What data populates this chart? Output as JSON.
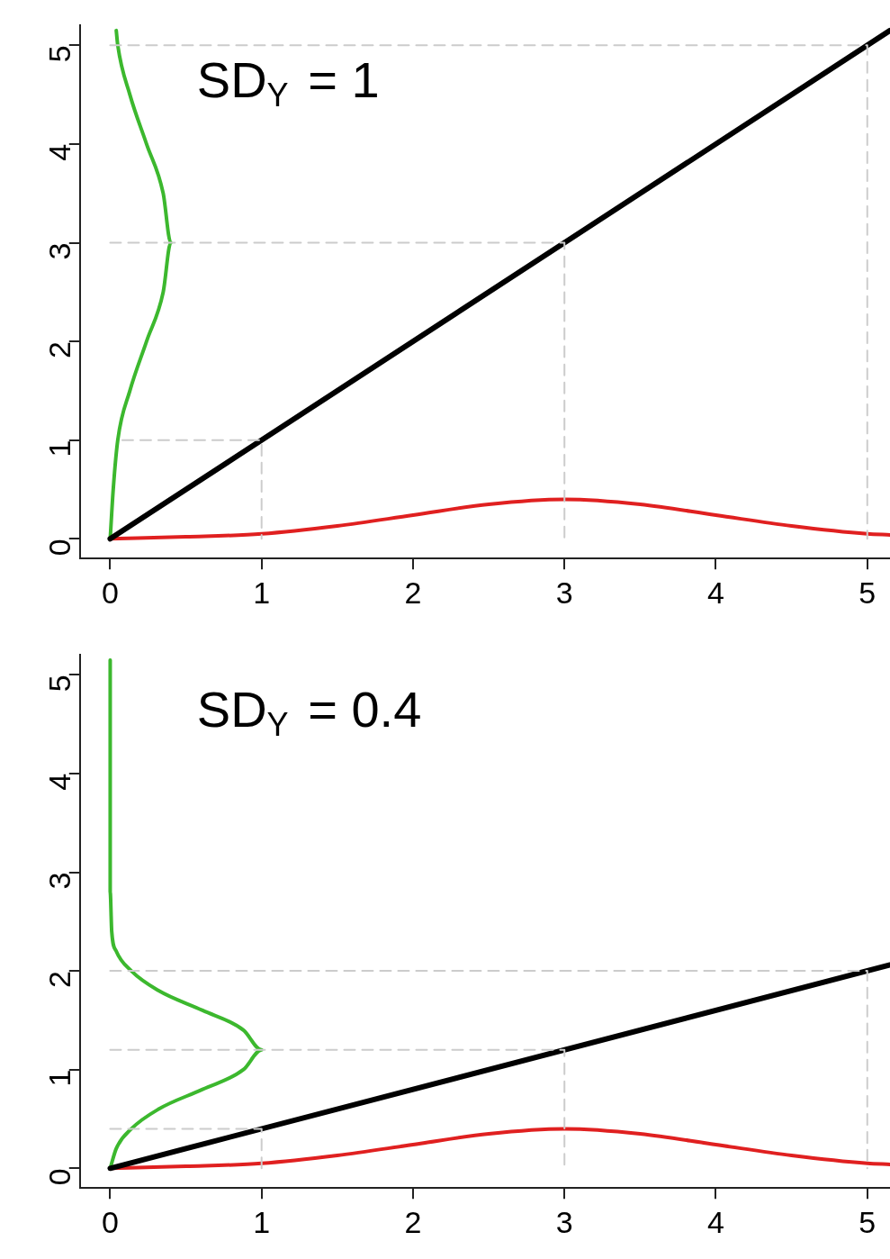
{
  "chart_data": [
    {
      "type": "line",
      "annotations": [
        "SD$_{Y}$ = 1"
      ],
      "xlim": [
        -0.2,
        5.15
      ],
      "ylim": [
        -0.2,
        5.2
      ],
      "xticks": [
        0,
        1,
        2,
        3,
        4,
        5
      ],
      "yticks": [
        0,
        1,
        2,
        3,
        4,
        5
      ],
      "grid": false,
      "legend": false,
      "marker": "none",
      "series": [
        {
          "color": "#cccccc",
          "line_style": "dashed",
          "x": [
            0.08,
            1,
            1
          ],
          "values": [
            1,
            1,
            0
          ]
        },
        {
          "color": "#cccccc",
          "line_style": "dashed",
          "x": [
            0,
            3,
            3
          ],
          "values": [
            3,
            3,
            0
          ]
        },
        {
          "color": "#cccccc",
          "line_style": "dashed",
          "x": [
            0,
            5,
            5
          ],
          "values": [
            5,
            5,
            0
          ]
        },
        {
          "color": "#000000",
          "line_style": "solid",
          "x": [
            0,
            5.15
          ],
          "values": [
            0,
            5.15
          ]
        },
        {
          "color": "#e02020",
          "line_style": "solid",
          "x": [
            0,
            0.5,
            1,
            1.5,
            2,
            2.5,
            3,
            3.5,
            4,
            4.5,
            5,
            5.15
          ],
          "values": [
            0,
            0.02,
            0.05,
            0.13,
            0.24,
            0.35,
            0.4,
            0.35,
            0.24,
            0.13,
            0.05,
            0.04
          ]
        },
        {
          "color": "#3cb82e",
          "line_style": "solid",
          "x": [
            0,
            0.02,
            0.05,
            0.13,
            0.24,
            0.35,
            0.4,
            0.35,
            0.24,
            0.13,
            0.05,
            0.04
          ],
          "values": [
            0,
            0.5,
            1,
            1.5,
            2,
            2.5,
            3,
            3.5,
            4,
            4.5,
            5,
            5.15
          ]
        }
      ]
    },
    {
      "type": "line",
      "annotations": [
        "SD$_{Y}$ = 0.4"
      ],
      "xlim": [
        -0.2,
        5.15
      ],
      "ylim": [
        -0.2,
        5.2
      ],
      "xticks": [
        0,
        1,
        2,
        3,
        4,
        5
      ],
      "yticks": [
        0,
        1,
        2,
        3,
        4,
        5
      ],
      "grid": false,
      "legend": false,
      "marker": "none",
      "series": [
        {
          "color": "#cccccc",
          "line_style": "dashed",
          "x": [
            0,
            1,
            1
          ],
          "values": [
            0.4,
            0.4,
            0
          ]
        },
        {
          "color": "#cccccc",
          "line_style": "dashed",
          "x": [
            0,
            3,
            3
          ],
          "values": [
            1.2,
            1.2,
            0
          ]
        },
        {
          "color": "#cccccc",
          "line_style": "dashed",
          "x": [
            0,
            5,
            5
          ],
          "values": [
            2,
            2,
            0
          ]
        },
        {
          "color": "#000000",
          "line_style": "solid",
          "x": [
            0,
            5.15
          ],
          "values": [
            0,
            2.06
          ]
        },
        {
          "color": "#e02020",
          "line_style": "solid",
          "x": [
            0,
            0.5,
            1,
            1.5,
            2,
            2.5,
            3,
            3.5,
            4,
            4.5,
            5,
            5.15
          ],
          "values": [
            0,
            0.02,
            0.05,
            0.13,
            0.24,
            0.35,
            0.4,
            0.35,
            0.24,
            0.13,
            0.05,
            0.04
          ]
        },
        {
          "color": "#3cb82e",
          "line_style": "solid",
          "x": [
            0,
            0.04,
            0.14,
            0.32,
            0.61,
            0.88,
            1,
            0.88,
            0.61,
            0.32,
            0.14,
            0.04,
            0.01,
            0,
            0
          ],
          "values": [
            0,
            0.2,
            0.4,
            0.6,
            0.8,
            1,
            1.2,
            1.4,
            1.6,
            1.8,
            2,
            2.2,
            2.4,
            2.8,
            5.15
          ]
        }
      ]
    }
  ]
}
